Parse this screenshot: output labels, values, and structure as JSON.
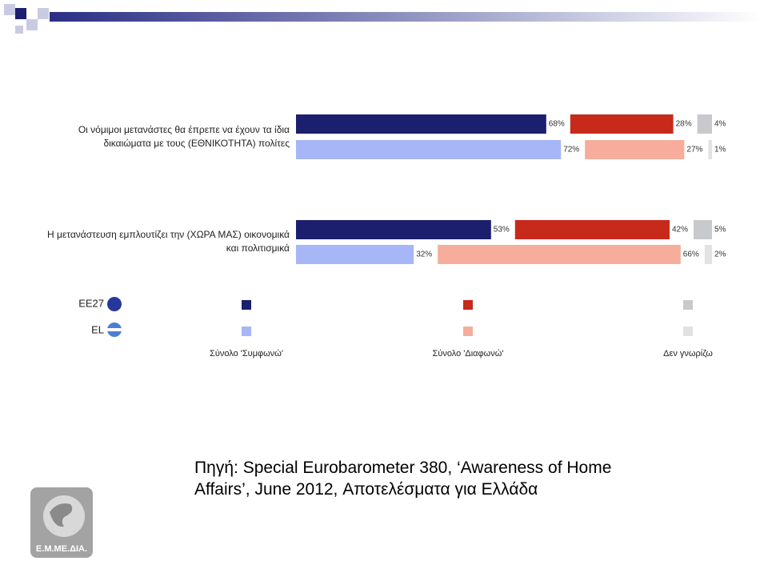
{
  "chart_data": {
    "type": "bar",
    "orientation": "horizontal",
    "stacked": true,
    "categories": [
      "Οι νόμιμοι μετανάστες θα έπρεπε να έχουν τα ίδια δικαιώματα με τους (ΕΘΝΙΚΟΤΗΤΑ) πολίτες",
      "Η μετανάστευση εμπλουτίζει την (ΧΩΡΑ ΜΑΣ) οικονομικά και πολιτισμικά"
    ],
    "series_names": [
      "Σύνολο 'Συμφωνώ'",
      "Σύνολο 'Διαφωνώ'",
      "Δεν γνωρίζω"
    ],
    "groups": [
      {
        "name": "EE27",
        "series": [
          {
            "color": "#1b1f6e",
            "values": [
              68,
              53
            ],
            "value_labels": [
              "68%",
              "53%"
            ]
          },
          {
            "color": "#c7291a",
            "values": [
              28,
              42
            ],
            "value_labels": [
              "28%",
              "42%"
            ]
          },
          {
            "color": "#c8c9cc",
            "values": [
              4,
              5
            ],
            "value_labels": [
              "4%",
              "5%"
            ]
          }
        ]
      },
      {
        "name": "EL",
        "series": [
          {
            "color": "#a7b6f7",
            "values": [
              72,
              32
            ],
            "value_labels": [
              "72%",
              "32%"
            ]
          },
          {
            "color": "#f6ad9c",
            "values": [
              27,
              66
            ],
            "value_labels": [
              "27%",
              "66%"
            ]
          },
          {
            "color": "#e2e2e4",
            "values": [
              1,
              2
            ],
            "value_labels": [
              "1%",
              "2%"
            ]
          }
        ]
      }
    ]
  },
  "source_lines": [
    "Πηγή: Special Eurobarometer 380, ‘Awareness of Home",
    "Affairs’, June 2012, Αποτελέσματα για Ελλάδα"
  ],
  "logo_text": "Ε.Μ.ΜΕ.ΔΙΑ."
}
